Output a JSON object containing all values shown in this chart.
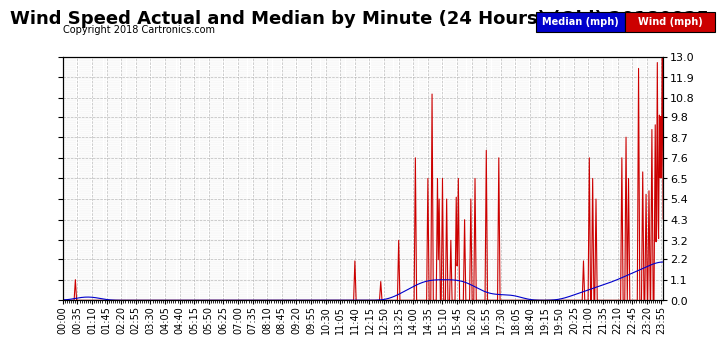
{
  "title": "Wind Speed Actual and Median by Minute (24 Hours) (Old) 20180925",
  "copyright": "Copyright 2018 Cartronics.com",
  "yticks": [
    0.0,
    1.1,
    2.2,
    3.2,
    4.3,
    5.4,
    6.5,
    7.6,
    8.7,
    9.8,
    10.8,
    11.9,
    13.0
  ],
  "ymax": 13.0,
  "ymin": 0.0,
  "legend_labels": [
    "Median (mph)",
    "Wind (mph)"
  ],
  "legend_colors": [
    "#0000cc",
    "#cc0000"
  ],
  "bg_color": "#ffffff",
  "grid_color": "#aaaaaa",
  "title_fontsize": 13,
  "tick_label_fontsize": 7,
  "x_label_interval_min": 35
}
